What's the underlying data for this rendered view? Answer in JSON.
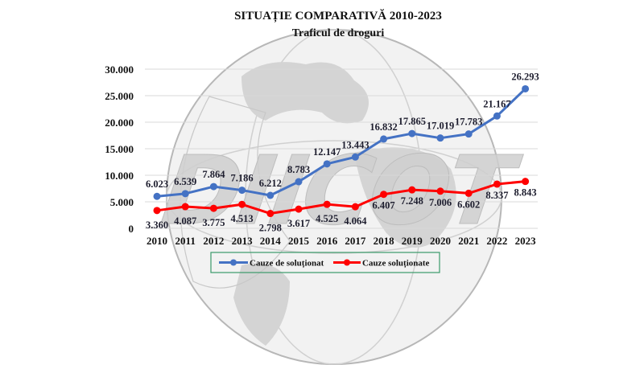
{
  "colors": {
    "blue": "#4472C4",
    "red": "#FF0000",
    "legend_border": "#3a9a6a",
    "watermark": "#b7b7b7"
  },
  "chart_data": {
    "type": "line",
    "title": "SITUAȚIE COMPARATIVĂ 2010-2023",
    "subtitle": "Traficul de droguri",
    "watermark": "DIICOT",
    "categories": [
      "2010",
      "2011",
      "2012",
      "2013",
      "2014",
      "2015",
      "2016",
      "2017",
      "2018",
      "2019",
      "2020",
      "2021",
      "2022",
      "2023"
    ],
    "yticks": [
      "0",
      "5.000",
      "10.000",
      "15.000",
      "20.000",
      "25.000",
      "30.000"
    ],
    "ylim": [
      0,
      30000
    ],
    "grid": true,
    "legend_position": "bottom",
    "series": [
      {
        "name": "Cauze de soluționat",
        "color": "#4472C4",
        "values": [
          6023,
          6539,
          7864,
          7186,
          6212,
          8783,
          12147,
          13443,
          16832,
          17865,
          17019,
          17783,
          21167,
          26293
        ],
        "labels": [
          "6.023",
          "6.539",
          "7.864",
          "7.186",
          "6.212",
          "8.783",
          "12.147",
          "13.443",
          "16.832",
          "17.865",
          "17.019",
          "17.783",
          "21.167",
          "26.293"
        ]
      },
      {
        "name": "Cauze soluționate",
        "color": "#FF0000",
        "values": [
          3360,
          4087,
          3775,
          4513,
          2798,
          3617,
          4525,
          4064,
          6407,
          7248,
          7006,
          6602,
          8337,
          8843
        ],
        "labels": [
          "3.360",
          "4.087",
          "3.775",
          "4.513",
          "2.798",
          "3.617",
          "4.525",
          "4.064",
          "6.407",
          "7.248",
          "7.006",
          "6.602",
          "8.337",
          "8.843"
        ]
      }
    ]
  }
}
